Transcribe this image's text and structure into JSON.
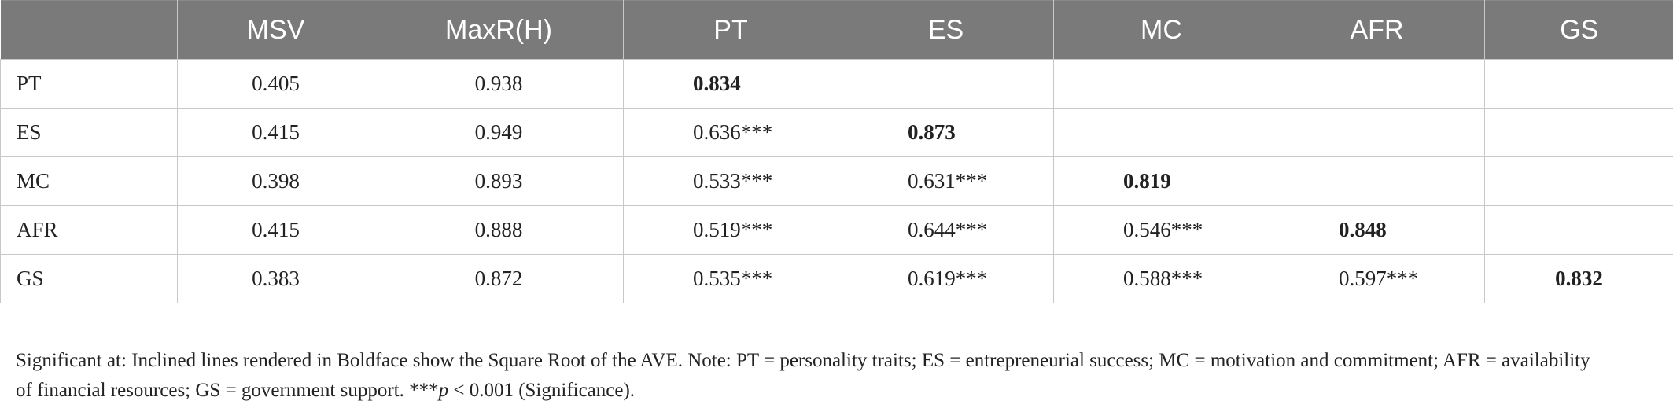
{
  "table": {
    "headers": [
      "",
      "MSV",
      "MaxR(H)",
      "PT",
      "ES",
      "MC",
      "AFR",
      "GS"
    ],
    "rows": [
      {
        "label": "PT",
        "msv": "0.405",
        "maxr": "0.938",
        "pt": "0.834",
        "es": "",
        "mc": "",
        "afr": "",
        "gs": ""
      },
      {
        "label": "ES",
        "msv": "0.415",
        "maxr": "0.949",
        "pt": "0.636***",
        "es": "0.873",
        "mc": "",
        "afr": "",
        "gs": ""
      },
      {
        "label": "MC",
        "msv": "0.398",
        "maxr": "0.893",
        "pt": "0.533***",
        "es": "0.631***",
        "mc": "0.819",
        "afr": "",
        "gs": ""
      },
      {
        "label": "AFR",
        "msv": "0.415",
        "maxr": "0.888",
        "pt": "0.519***",
        "es": "0.644***",
        "mc": "0.546***",
        "afr": "0.848",
        "gs": ""
      },
      {
        "label": "GS",
        "msv": "0.383",
        "maxr": "0.872",
        "pt": "0.535***",
        "es": "0.619***",
        "mc": "0.588***",
        "afr": "0.597***",
        "gs": "0.832"
      }
    ]
  },
  "footnote": {
    "line1": "Significant at: Inclined lines rendered in Boldface show the Square Root of the AVE. Note: PT = personality traits; ES = entrepreneurial success; MC = motivation and commitment; AFR = availability",
    "line2_pre": "of financial resources; GS = government support. ***",
    "line2_p": "p",
    "line2_post": " < 0.001 (Significance)."
  }
}
